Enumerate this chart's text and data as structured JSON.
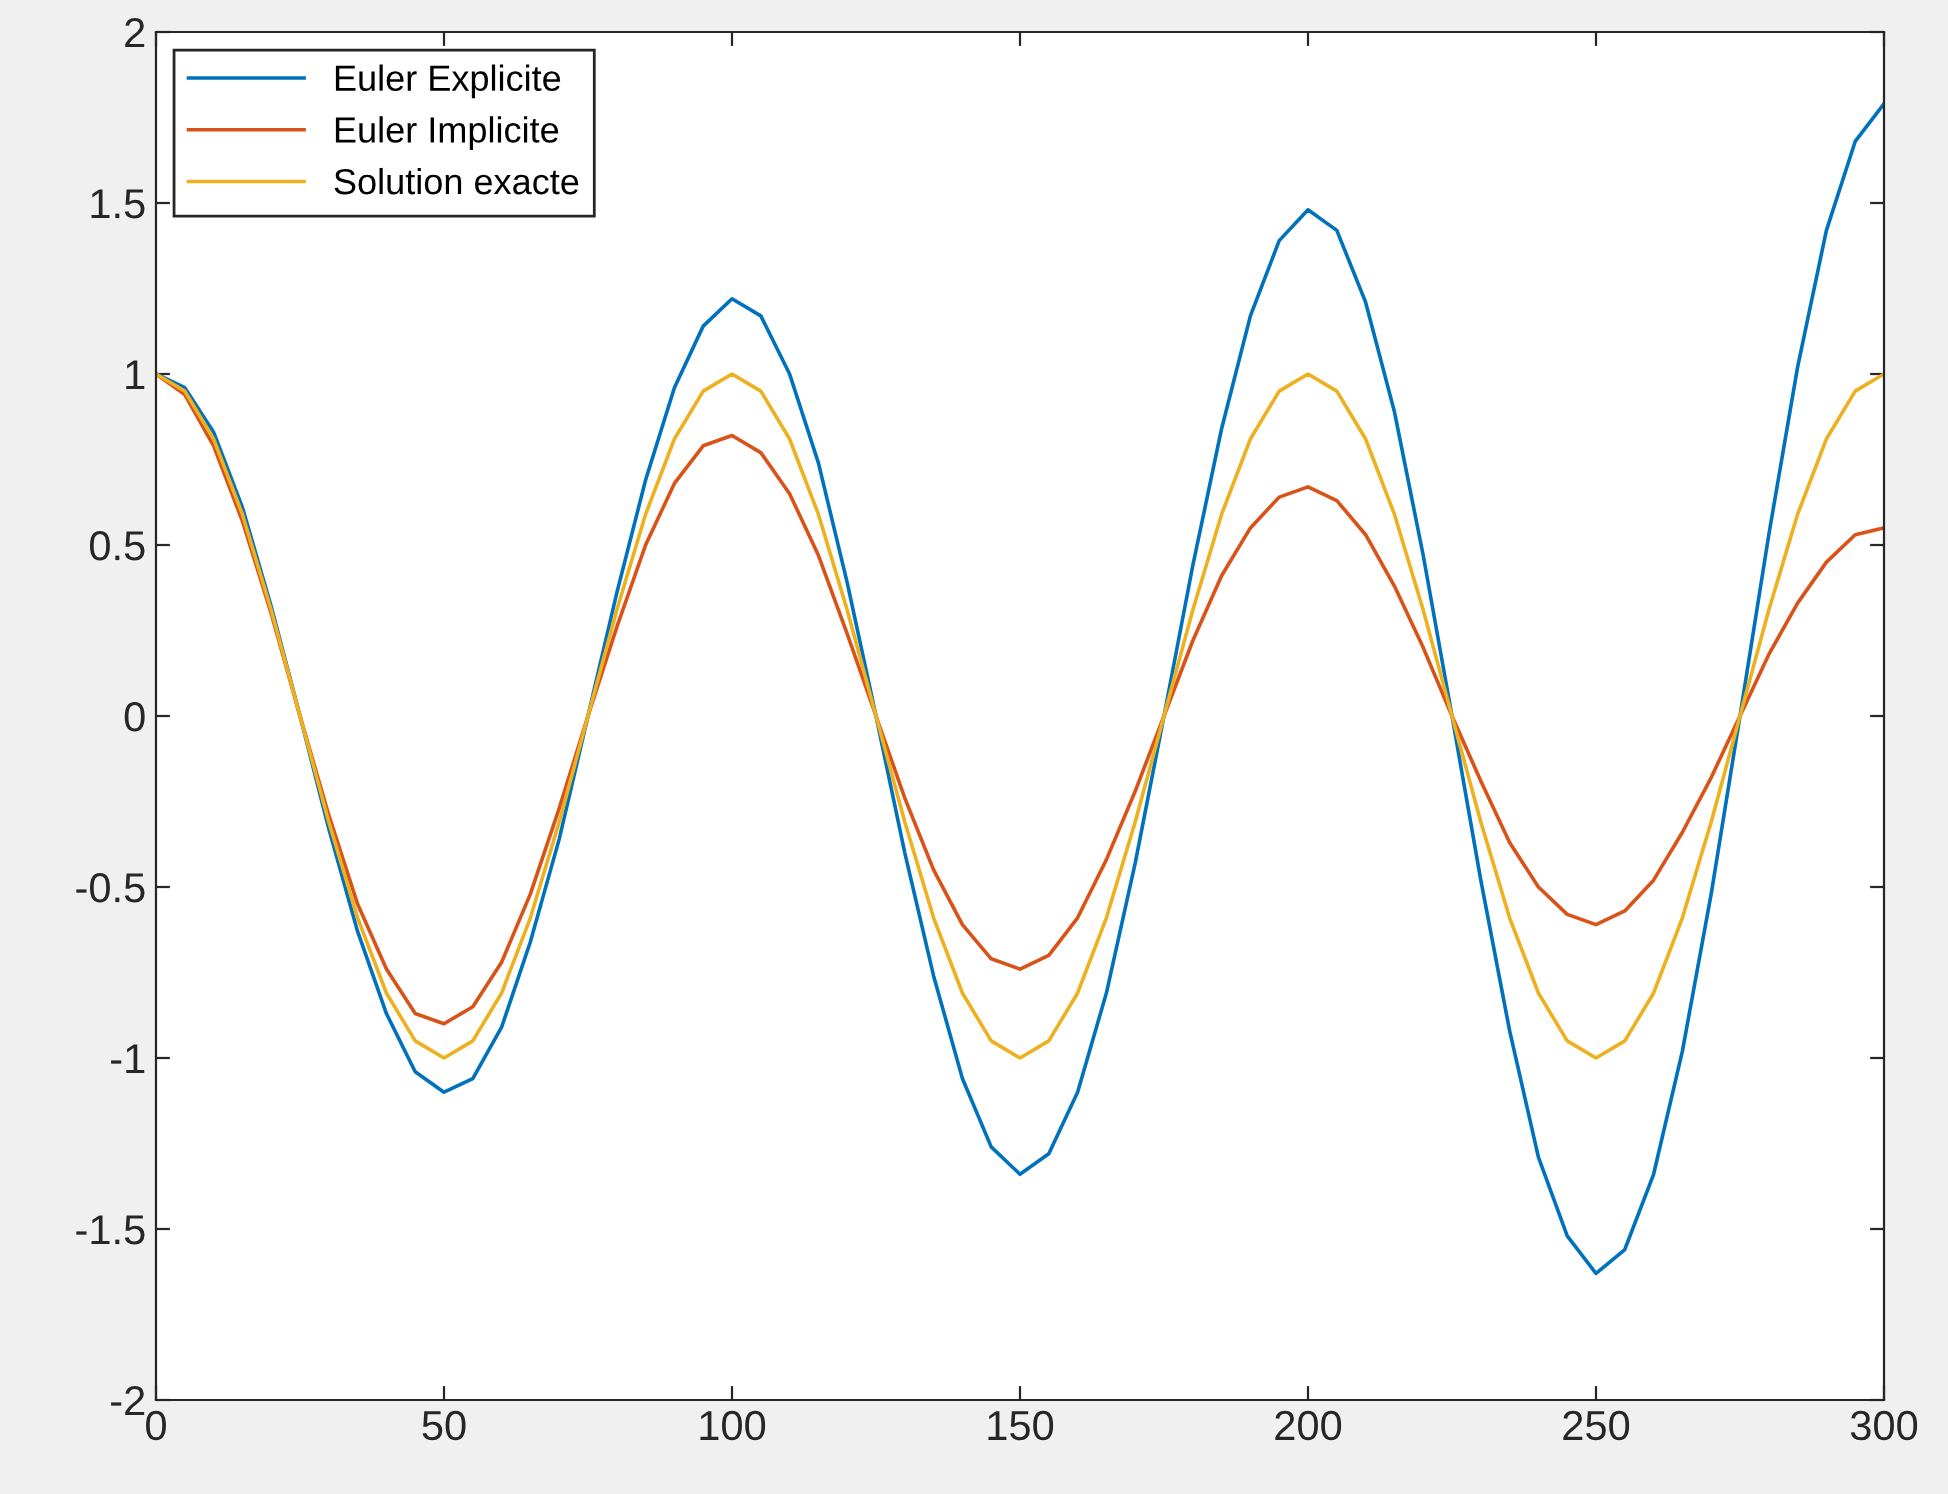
{
  "chart_data": {
    "type": "line",
    "x": [
      0,
      5,
      10,
      15,
      20,
      25,
      30,
      35,
      40,
      45,
      50,
      55,
      60,
      65,
      70,
      75,
      80,
      85,
      90,
      95,
      100,
      105,
      110,
      115,
      120,
      125,
      130,
      135,
      140,
      145,
      150,
      155,
      160,
      165,
      170,
      175,
      180,
      185,
      190,
      195,
      200,
      205,
      210,
      215,
      220,
      225,
      230,
      235,
      240,
      245,
      250,
      255,
      260,
      265,
      270,
      275,
      280,
      285,
      290,
      295,
      300
    ],
    "series": [
      {
        "name": "Euler Explicite",
        "color": "#0072bd",
        "values": [
          1,
          0.96,
          0.83,
          0.61,
          0.32,
          0,
          -0.33,
          -0.63,
          -0.87,
          -1.04,
          -1.1,
          -1.06,
          -0.91,
          -0.66,
          -0.36,
          0,
          0.36,
          0.69,
          0.96,
          1.14,
          1.22,
          1.17,
          1.0,
          0.74,
          0.39,
          0,
          -0.4,
          -0.76,
          -1.06,
          -1.26,
          -1.34,
          -1.28,
          -1.1,
          -0.81,
          -0.43,
          0,
          0.44,
          0.84,
          1.17,
          1.39,
          1.48,
          1.42,
          1.21,
          0.89,
          0.47,
          0,
          -0.48,
          -0.92,
          -1.29,
          -1.52,
          -1.63,
          -1.56,
          -1.34,
          -0.98,
          -0.52,
          0,
          0.53,
          1.02,
          1.42,
          1.68,
          1.79
        ]
      },
      {
        "name": "Euler Implicite",
        "color": "#d95319",
        "values": [
          1,
          0.94,
          0.79,
          0.57,
          0.3,
          0,
          -0.29,
          -0.55,
          -0.74,
          -0.87,
          -0.9,
          -0.85,
          -0.72,
          -0.52,
          -0.27,
          0,
          0.26,
          0.5,
          0.68,
          0.79,
          0.82,
          0.77,
          0.65,
          0.47,
          0.24,
          0,
          -0.24,
          -0.45,
          -0.61,
          -0.71,
          -0.74,
          -0.7,
          -0.59,
          -0.42,
          -0.22,
          0,
          0.22,
          0.41,
          0.55,
          0.64,
          0.67,
          0.63,
          0.53,
          0.38,
          0.2,
          0,
          -0.19,
          -0.37,
          -0.5,
          -0.58,
          -0.61,
          -0.57,
          -0.48,
          -0.34,
          -0.18,
          0,
          0.18,
          0.33,
          0.45,
          0.53,
          0.55
        ]
      },
      {
        "name": "Solution exacte",
        "color": "#edb120",
        "values": [
          1,
          0.95,
          0.81,
          0.59,
          0.31,
          0,
          -0.31,
          -0.59,
          -0.81,
          -0.95,
          -1,
          -0.95,
          -0.81,
          -0.59,
          -0.31,
          0,
          0.31,
          0.59,
          0.81,
          0.95,
          1,
          0.95,
          0.81,
          0.59,
          0.31,
          0,
          -0.31,
          -0.59,
          -0.81,
          -0.95,
          -1,
          -0.95,
          -0.81,
          -0.59,
          -0.31,
          0,
          0.31,
          0.59,
          0.81,
          0.95,
          1,
          0.95,
          0.81,
          0.59,
          0.31,
          0,
          -0.31,
          -0.59,
          -0.81,
          -0.95,
          -1,
          -0.95,
          -0.81,
          -0.59,
          -0.31,
          0,
          0.31,
          0.59,
          0.81,
          0.95,
          1
        ]
      }
    ],
    "xlim": [
      0,
      300
    ],
    "xticks": [
      0,
      50,
      100,
      150,
      200,
      250,
      300
    ],
    "ylim": [
      -2,
      2
    ],
    "yticks": [
      -2,
      -1.5,
      -1,
      -0.5,
      0,
      0.5,
      1,
      1.5,
      2
    ],
    "legend": "top left",
    "grid": false,
    "marker": "none",
    "line_style": "solid"
  }
}
